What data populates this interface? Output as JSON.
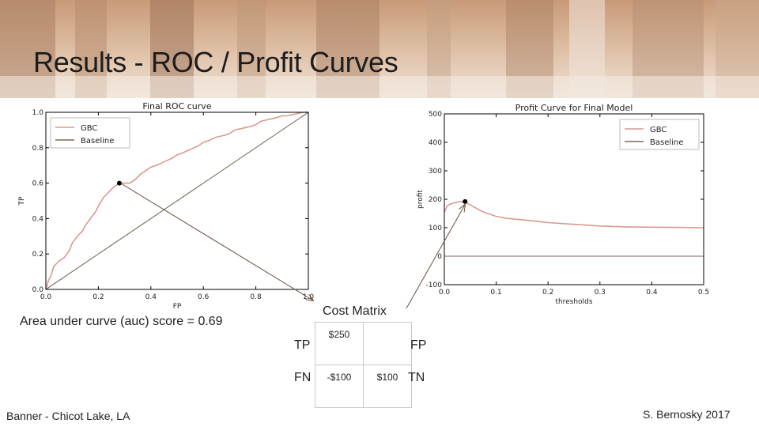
{
  "slide": {
    "title": "Results - ROC / Profit Curves",
    "footer_left": "Banner - Chicot Lake, LA",
    "footer_right": "S. Bernosky 2017",
    "auc_text": "Area under curve (auc) score = 0.69"
  },
  "cost_matrix": {
    "title": "Cost Matrix",
    "row_labels": [
      "TP",
      "FN"
    ],
    "col_labels": [
      "FP",
      "TN"
    ],
    "cells": [
      [
        "$250",
        ""
      ],
      [
        "-$100",
        "$100"
      ]
    ]
  },
  "colors": {
    "gbc": "#d89a90",
    "baseline": "#7a6a58",
    "axis": "#000000",
    "arrow": "#6b5040"
  },
  "chart_data": [
    {
      "type": "line",
      "title": "Final ROC curve",
      "xlabel": "FP",
      "ylabel": "TP",
      "xlim": [
        0,
        1
      ],
      "ylim": [
        0,
        1
      ],
      "xticks": [
        "0.0",
        "0.2",
        "0.4",
        "0.6",
        "0.8",
        "1.0"
      ],
      "yticks": [
        "0.0",
        "0.2",
        "0.4",
        "0.6",
        "0.8",
        "1.0"
      ],
      "grid": false,
      "legend": "top-left",
      "series": [
        {
          "name": "GBC",
          "x": [
            0,
            0.01,
            0.02,
            0.03,
            0.05,
            0.07,
            0.09,
            0.1,
            0.12,
            0.14,
            0.15,
            0.17,
            0.19,
            0.2,
            0.22,
            0.24,
            0.26,
            0.28,
            0.3,
            0.32,
            0.34,
            0.36,
            0.38,
            0.4,
            0.42,
            0.45,
            0.48,
            0.5,
            0.52,
            0.55,
            0.58,
            0.6,
            0.62,
            0.65,
            0.68,
            0.7,
            0.72,
            0.75,
            0.78,
            0.8,
            0.82,
            0.85,
            0.88,
            0.9,
            0.92,
            0.95,
            0.98,
            1.0
          ],
          "y": [
            0,
            0.05,
            0.08,
            0.13,
            0.16,
            0.18,
            0.22,
            0.26,
            0.3,
            0.33,
            0.36,
            0.4,
            0.44,
            0.47,
            0.52,
            0.55,
            0.58,
            0.6,
            0.6,
            0.6,
            0.62,
            0.65,
            0.67,
            0.69,
            0.7,
            0.72,
            0.74,
            0.76,
            0.77,
            0.79,
            0.81,
            0.83,
            0.84,
            0.86,
            0.87,
            0.88,
            0.9,
            0.91,
            0.92,
            0.93,
            0.95,
            0.96,
            0.97,
            0.98,
            0.98,
            0.99,
            1.0,
            1.0
          ]
        },
        {
          "name": "Baseline",
          "x": [
            0,
            1
          ],
          "y": [
            0,
            1
          ]
        }
      ],
      "annotations": [
        {
          "label": "marker",
          "x": 0.28,
          "y": 0.6
        }
      ]
    },
    {
      "type": "line",
      "title": "Profit Curve for Final Model",
      "xlabel": "thresholds",
      "ylabel": "profit",
      "xlim": [
        0,
        0.5
      ],
      "ylim": [
        -100,
        500
      ],
      "xticks": [
        "0.0",
        "0.1",
        "0.2",
        "0.3",
        "0.4",
        "0.5"
      ],
      "yticks": [
        "-100",
        "0",
        "100",
        "200",
        "300",
        "400",
        "500"
      ],
      "grid": false,
      "legend": "top-right",
      "series": [
        {
          "name": "GBC",
          "x": [
            0,
            0.005,
            0.01,
            0.02,
            0.03,
            0.04,
            0.05,
            0.06,
            0.07,
            0.08,
            0.1,
            0.12,
            0.15,
            0.18,
            0.2,
            0.25,
            0.3,
            0.35,
            0.4,
            0.45,
            0.5
          ],
          "y": [
            155,
            175,
            182,
            188,
            192,
            190,
            180,
            170,
            160,
            152,
            140,
            133,
            128,
            122,
            118,
            112,
            106,
            103,
            102,
            101,
            100
          ]
        },
        {
          "name": "Baseline",
          "x": [
            0,
            0.5
          ],
          "y": [
            0,
            0
          ]
        }
      ],
      "annotations": [
        {
          "label": "marker",
          "x": 0.04,
          "y": 192
        }
      ]
    }
  ]
}
